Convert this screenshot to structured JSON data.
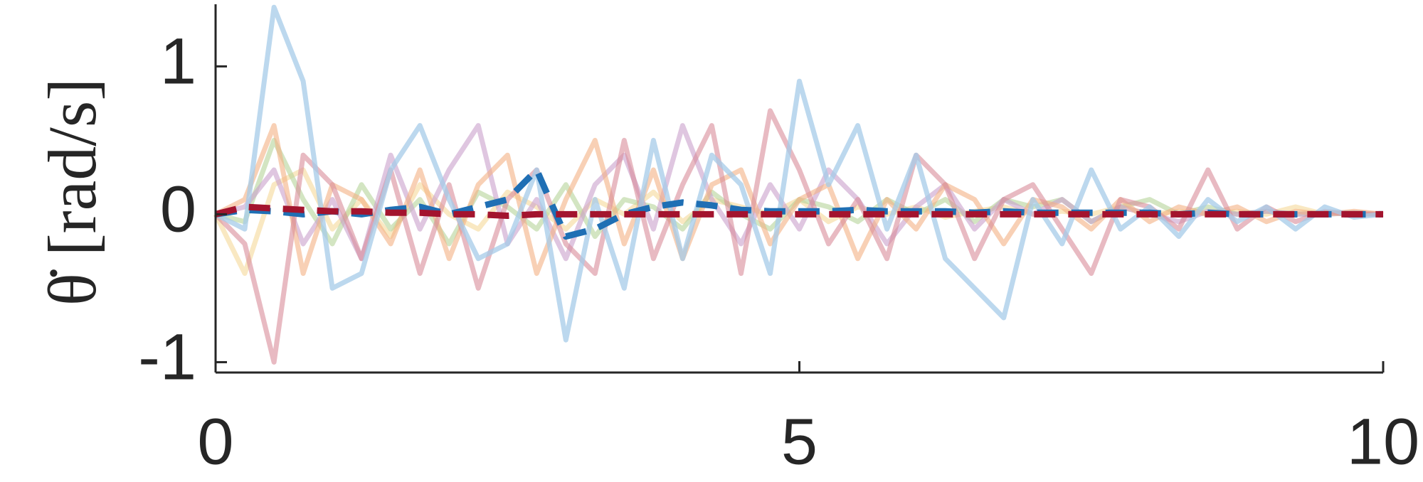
{
  "chart_data": {
    "type": "line",
    "y_label": "θ̇ [rad/s]",
    "x": [
      0,
      0.25,
      0.5,
      0.75,
      1,
      1.25,
      1.5,
      1.75,
      2,
      2.25,
      2.5,
      2.75,
      3,
      3.25,
      3.5,
      3.75,
      4,
      4.25,
      4.5,
      4.75,
      5,
      5.25,
      5.5,
      5.75,
      6,
      6.25,
      6.5,
      6.75,
      7,
      7.25,
      7.5,
      7.75,
      8,
      8.25,
      8.5,
      8.75,
      9,
      9.25,
      9.5,
      9.75,
      10
    ],
    "series": [
      {
        "color": "#f5d89a",
        "opacity": 0.6,
        "values": [
          0,
          -0.4,
          0.2,
          0.3,
          -0.1,
          0.1,
          -0.15,
          0.2,
          0.0,
          -0.1,
          0.15,
          0.05,
          -0.1,
          0.1,
          0.0,
          0.15,
          -0.05,
          0.1,
          0.05,
          0.0,
          0.1,
          -0.05,
          0.05,
          0.0,
          0.05,
          -0.02,
          0.02,
          0.05,
          0.0,
          0.02,
          0.0,
          0.05,
          0.0,
          0.02,
          0.0,
          0.02,
          0.0,
          0.05,
          0.0,
          0.01,
          0.0
        ]
      },
      {
        "color": "#b5d39a",
        "opacity": 0.6,
        "values": [
          0,
          -0.05,
          0.5,
          0.1,
          -0.2,
          0.2,
          -0.1,
          0.1,
          -0.2,
          0.15,
          0.05,
          -0.1,
          0.2,
          -0.15,
          0.1,
          0.05,
          -0.1,
          0.15,
          0.0,
          -0.1,
          0.1,
          0.05,
          -0.05,
          0.1,
          0.0,
          0.1,
          -0.05,
          0.1,
          0.05,
          0.1,
          -0.05,
          0.05,
          0.1,
          0.0,
          0.05,
          0.0,
          0.02,
          0.0,
          0.01,
          0.0,
          0.0
        ]
      },
      {
        "color": "#c9a0cc",
        "opacity": 0.6,
        "values": [
          0,
          0.05,
          0.3,
          -0.2,
          0.1,
          -0.3,
          0.4,
          -0.1,
          0.3,
          0.6,
          -0.2,
          0.1,
          -0.3,
          0.2,
          0.4,
          -0.1,
          0.6,
          0.1,
          -0.2,
          0.2,
          -0.1,
          0.3,
          0.1,
          -0.2,
          0.05,
          0.2,
          -0.1,
          0.1,
          0.0,
          0.1,
          -0.05,
          0.05,
          0.0,
          -0.05,
          0.02,
          0.0,
          0.02,
          0.0,
          0.0,
          0.01,
          0.0
        ]
      },
      {
        "color": "#f4b183",
        "opacity": 0.6,
        "values": [
          0,
          0.1,
          0.6,
          -0.4,
          0.2,
          0.1,
          -0.2,
          0.3,
          -0.3,
          0.2,
          0.4,
          -0.4,
          0.1,
          0.5,
          -0.2,
          0.3,
          -0.3,
          0.2,
          0.3,
          -0.2,
          0.1,
          0.2,
          -0.3,
          0.1,
          -0.1,
          0.2,
          0.1,
          -0.2,
          0.1,
          0.05,
          -0.1,
          0.1,
          -0.05,
          0.05,
          0.0,
          0.05,
          -0.05,
          0.02,
          0.0,
          0.02,
          0.0
        ]
      },
      {
        "color": "#d98c9a",
        "opacity": 0.6,
        "values": [
          0,
          -0.2,
          -1.0,
          0.4,
          0.2,
          -0.3,
          0.3,
          -0.4,
          0.2,
          -0.5,
          0.1,
          0.3,
          -0.2,
          -0.4,
          0.5,
          -0.3,
          0.2,
          0.6,
          -0.4,
          0.7,
          0.3,
          -0.2,
          0.1,
          -0.3,
          0.4,
          0.2,
          -0.3,
          0.1,
          0.2,
          -0.1,
          -0.4,
          0.1,
          0.05,
          -0.1,
          0.3,
          -0.1,
          0.05,
          -0.05,
          0.02,
          0.0,
          0.0
        ]
      },
      {
        "color": "#a6cbe8",
        "opacity": 0.75,
        "values": [
          0,
          -0.1,
          1.4,
          0.9,
          -0.5,
          -0.4,
          0.3,
          0.6,
          0.1,
          -0.3,
          -0.2,
          0.3,
          -0.85,
          0.1,
          -0.5,
          0.5,
          -0.3,
          0.4,
          0.2,
          -0.4,
          0.9,
          0.2,
          0.6,
          -0.1,
          0.4,
          -0.3,
          -0.5,
          -0.7,
          0.1,
          -0.2,
          0.3,
          -0.1,
          0.05,
          -0.15,
          0.1,
          -0.05,
          0.05,
          -0.1,
          0.05,
          -0.02,
          0.0
        ]
      },
      {
        "color": "#1f6fb4",
        "opacity": 1,
        "dashed": true,
        "values": [
          0,
          0.03,
          0.02,
          0.0,
          0.02,
          0.0,
          0.03,
          0.05,
          0.0,
          0.05,
          0.1,
          0.3,
          -0.15,
          -0.1,
          0.0,
          0.05,
          0.08,
          0.06,
          0.03,
          0.02,
          0.02,
          0.02,
          0.03,
          0.02,
          0.02,
          0.02,
          0.01,
          0.02,
          0.01,
          0.01,
          0.01,
          0.01,
          0.01,
          0.0,
          0.01,
          0.0,
          0.0,
          0.0,
          0.0,
          0.0,
          0.0
        ]
      },
      {
        "color": "#a3142e",
        "opacity": 1,
        "dashed": true,
        "values": [
          0,
          0.05,
          0.04,
          0.03,
          0.02,
          0.02,
          0.01,
          0.01,
          0.0,
          0.0,
          -0.01,
          0.0,
          0.0,
          0.0,
          0.0,
          0.0,
          0.0,
          0.0,
          0.0,
          0.0,
          0.0,
          0.0,
          0.0,
          0.0,
          0.0,
          0.0,
          0.0,
          0.0,
          0.0,
          0.0,
          0.0,
          0.0,
          0.0,
          0.0,
          0.0,
          0.0,
          0.0,
          0.0,
          0.0,
          0.0,
          0.0
        ]
      }
    ],
    "xlim": [
      0,
      10
    ],
    "xticks": [
      0,
      5,
      10
    ],
    "ylim": [
      -1.07,
      1.42
    ],
    "yticks": [
      -1,
      0,
      1
    ]
  }
}
